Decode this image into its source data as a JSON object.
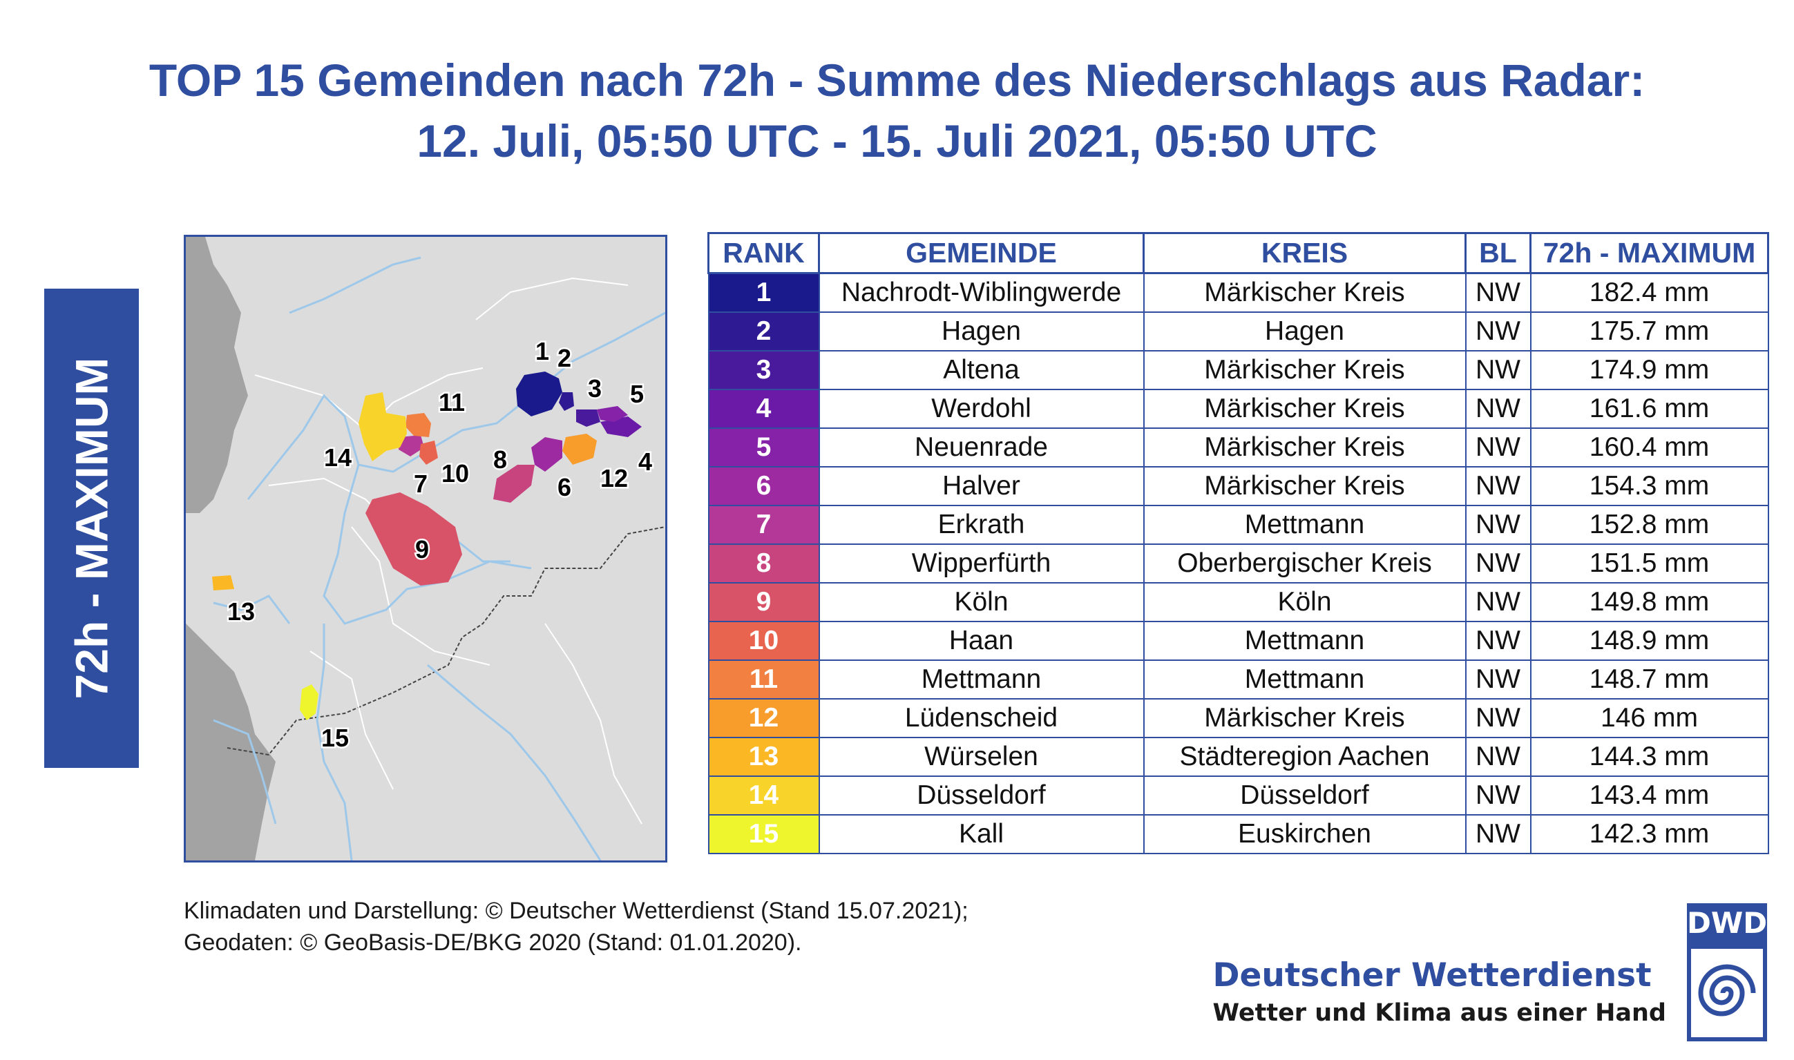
{
  "title": {
    "line1": "TOP 15 Gemeinden nach 72h - Summe des Niederschlags aus Radar:",
    "line2": "12. Juli, 05:50 UTC - 15. Juli 2021, 05:50 UTC"
  },
  "side_label": "72h - MAXIMUM",
  "map_labels": [
    "1",
    "2",
    "3",
    "4",
    "5",
    "6",
    "7",
    "8",
    "9",
    "10",
    "11",
    "12",
    "13",
    "14",
    "15"
  ],
  "table": {
    "headers": [
      "RANK",
      "GEMEINDE",
      "KREIS",
      "BL",
      "72h - MAXIMUM"
    ],
    "rows": [
      {
        "rank": "1",
        "gemeinde": "Nachrodt-Wiblingwerde",
        "kreis": "Märkischer Kreis",
        "bl": "NW",
        "max": "182.4 mm",
        "color": "#1a1a8c"
      },
      {
        "rank": "2",
        "gemeinde": "Hagen",
        "kreis": "Hagen",
        "bl": "NW",
        "max": "175.7 mm",
        "color": "#2e1a92"
      },
      {
        "rank": "3",
        "gemeinde": "Altena",
        "kreis": "Märkischer Kreis",
        "bl": "NW",
        "max": "174.9 mm",
        "color": "#4a1a9c"
      },
      {
        "rank": "4",
        "gemeinde": "Werdohl",
        "kreis": "Märkischer Kreis",
        "bl": "NW",
        "max": "161.6 mm",
        "color": "#6a1aa6"
      },
      {
        "rank": "5",
        "gemeinde": "Neuenrade",
        "kreis": "Märkischer Kreis",
        "bl": "NW",
        "max": "160.4 mm",
        "color": "#8522a8"
      },
      {
        "rank": "6",
        "gemeinde": "Halver",
        "kreis": "Märkischer Kreis",
        "bl": "NW",
        "max": "154.3 mm",
        "color": "#9e2aa2"
      },
      {
        "rank": "7",
        "gemeinde": "Erkrath",
        "kreis": "Mettmann",
        "bl": "NW",
        "max": "152.8 mm",
        "color": "#b43898"
      },
      {
        "rank": "8",
        "gemeinde": "Wipperfürth",
        "kreis": "Oberbergischer Kreis",
        "bl": "NW",
        "max": "151.5 mm",
        "color": "#c8447e"
      },
      {
        "rank": "9",
        "gemeinde": "Köln",
        "kreis": "Köln",
        "bl": "NW",
        "max": "149.8 mm",
        "color": "#d85268"
      },
      {
        "rank": "10",
        "gemeinde": "Haan",
        "kreis": "Mettmann",
        "bl": "NW",
        "max": "148.9 mm",
        "color": "#e8644e"
      },
      {
        "rank": "11",
        "gemeinde": "Mettmann",
        "kreis": "Mettmann",
        "bl": "NW",
        "max": "148.7 mm",
        "color": "#f28040"
      },
      {
        "rank": "12",
        "gemeinde": "Lüdenscheid",
        "kreis": "Märkischer Kreis",
        "bl": "NW",
        "max": "146 mm",
        "color": "#f89c2c"
      },
      {
        "rank": "13",
        "gemeinde": "Würselen",
        "kreis": "Städteregion Aachen",
        "bl": "NW",
        "max": "144.3 mm",
        "color": "#fbb724"
      },
      {
        "rank": "14",
        "gemeinde": "Düsseldorf",
        "kreis": "Düsseldorf",
        "bl": "NW",
        "max": "143.4 mm",
        "color": "#f8d42a"
      },
      {
        "rank": "15",
        "gemeinde": "Kall",
        "kreis": "Euskirchen",
        "bl": "NW",
        "max": "142.3 mm",
        "color": "#eef52c"
      }
    ]
  },
  "credits": {
    "line1": "Klimadaten und Darstellung: © Deutscher Wetterdienst (Stand 15.07.2021);",
    "line2": "Geodaten: © GeoBasis-DE/BKG 2020 (Stand: 01.01.2020)."
  },
  "brand": {
    "name": "Deutscher Wetterdienst",
    "slogan": "Wetter und Klima aus einer Hand",
    "logo_text": "DWD"
  }
}
